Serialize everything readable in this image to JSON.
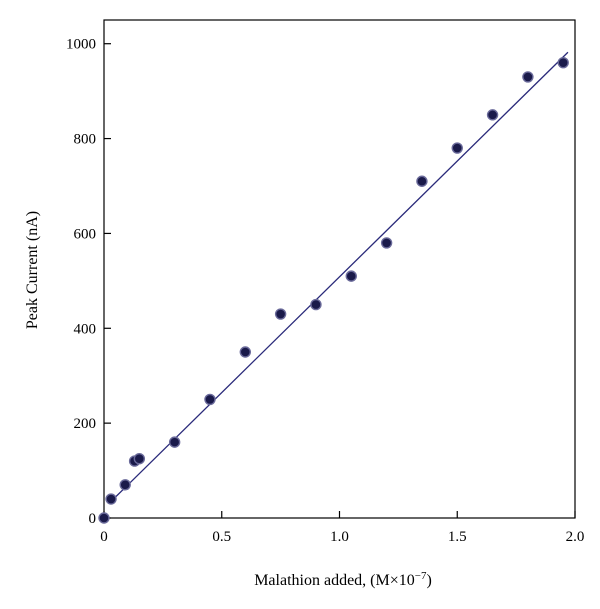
{
  "chart_data": {
    "type": "scatter",
    "xlabel": "Malathion added, (M×10",
    "xlabel_exponent": "−7",
    "xlabel_suffix": ")",
    "ylabel": "Peak Current (nA)",
    "xlim": [
      0,
      2.0
    ],
    "ylim": [
      0,
      1050
    ],
    "xticks": [
      0,
      0.5,
      1.0,
      1.5,
      2.0
    ],
    "xtick_labels": [
      "0",
      "0.5",
      "1.0",
      "1.5",
      "2.0"
    ],
    "yticks": [
      0,
      200,
      400,
      600,
      800,
      1000
    ],
    "ytick_labels": [
      "0",
      "200",
      "400",
      "600",
      "800",
      "1000"
    ],
    "grid": false,
    "series": [
      {
        "x": [
          0.0,
          0.03,
          0.09,
          0.13,
          0.15,
          0.3,
          0.45,
          0.6,
          0.75,
          0.9,
          1.05,
          1.2,
          1.35,
          1.5,
          1.65,
          1.8,
          1.95
        ],
        "y": [
          0,
          40,
          70,
          120,
          125,
          160,
          250,
          350,
          430,
          450,
          510,
          580,
          710,
          780,
          850,
          930,
          960
        ],
        "marker_color": "#1a1a4a",
        "marker_edge": "#6a6a9a"
      }
    ],
    "fit_line": {
      "x": [
        0.03,
        1.97
      ],
      "y": [
        35,
        982
      ],
      "color": "#2a2a7a"
    }
  }
}
